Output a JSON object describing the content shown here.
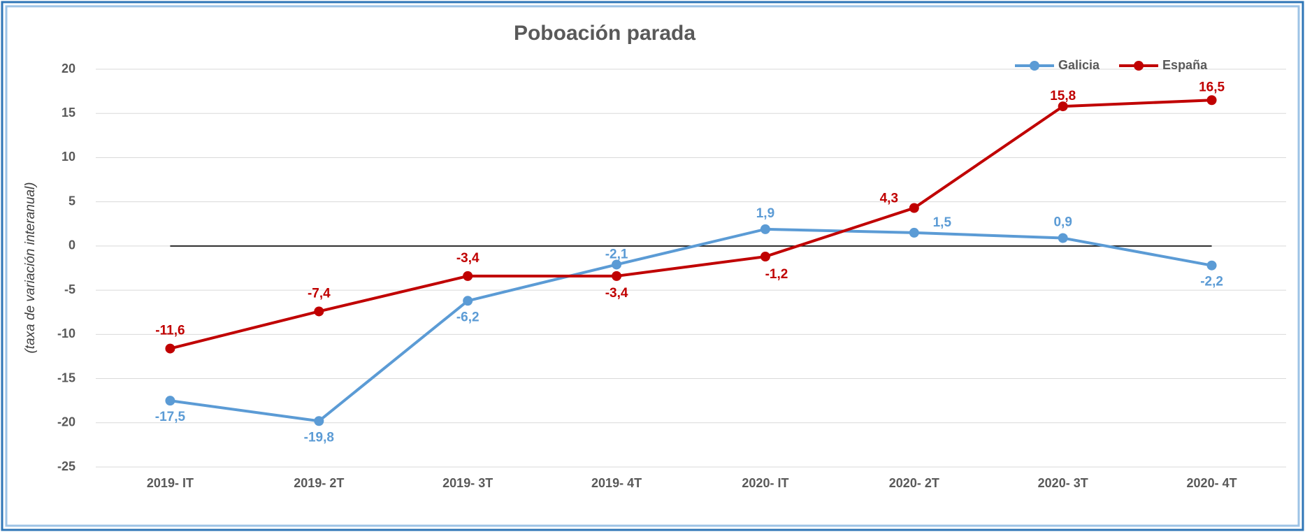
{
  "chart_data": {
    "type": "line",
    "title": "Poboación parada",
    "y_label": "(taxa de variación interanual)",
    "categories": [
      "2019- IT",
      "2019- 2T",
      "2019- 3T",
      "2019- 4T",
      "2020- IT",
      "2020- 2T",
      "2020- 3T",
      "2020- 4T"
    ],
    "series": [
      {
        "name": "Galicia",
        "color": "#5b9bd5",
        "values": [
          -17.5,
          -19.8,
          -6.2,
          -2.1,
          1.9,
          1.5,
          0.9,
          -2.2
        ],
        "value_labels": [
          "-17,5",
          "-19,8",
          "-6,2",
          "-2,1",
          "1,9",
          "1,5",
          "0,9",
          "-2,2"
        ]
      },
      {
        "name": "España",
        "color": "#c00000",
        "values": [
          -11.6,
          -7.4,
          -3.4,
          -3.4,
          -1.2,
          4.3,
          15.8,
          16.5
        ],
        "value_labels": [
          "-11,6",
          "-7,4",
          "-3,4",
          "-3,4",
          "-1,2",
          "4,3",
          "15,8",
          "16,5"
        ]
      }
    ],
    "ylim": [
      -25,
      20
    ],
    "yticks": [
      -25,
      -20,
      -15,
      -10,
      -5,
      0,
      5,
      10,
      15,
      20
    ],
    "grid": true,
    "legend": "top-right"
  }
}
